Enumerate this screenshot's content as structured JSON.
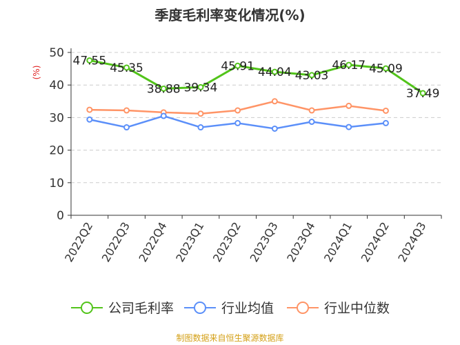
{
  "chart_data": {
    "type": "line",
    "title": "季度毛利率变化情况(%)",
    "ylabel": "(%)",
    "ylim": [
      0,
      50
    ],
    "yticks": [
      0,
      10,
      20,
      30,
      40,
      50
    ],
    "categories": [
      "2022Q2",
      "2022Q3",
      "2022Q4",
      "2023Q1",
      "2023Q2",
      "2023Q3",
      "2023Q4",
      "2024Q1",
      "2024Q2",
      "2024Q3"
    ],
    "series": [
      {
        "name": "公司毛利率",
        "color": "#52c41a",
        "values": [
          47.55,
          45.35,
          38.88,
          39.34,
          45.91,
          44.04,
          43.03,
          46.17,
          45.09,
          37.49
        ],
        "labels": [
          "47.55",
          "45.35",
          "38.88",
          "39.34",
          "45.91",
          "44.04",
          "43.03",
          "46.17",
          "45.09",
          "37.49"
        ]
      },
      {
        "name": "行业均值",
        "color": "#5b8ff9",
        "values": [
          29.4,
          27.0,
          30.5,
          27.0,
          28.3,
          26.6,
          28.7,
          27.1,
          28.3,
          null
        ]
      },
      {
        "name": "行业中位数",
        "color": "#ff9466",
        "values": [
          32.4,
          32.2,
          31.6,
          31.2,
          32.2,
          35.0,
          32.2,
          33.6,
          32.1,
          null
        ]
      }
    ],
    "grid": true,
    "legend": "bottom"
  },
  "source_text": "制图数据来自恒生聚源数据库"
}
